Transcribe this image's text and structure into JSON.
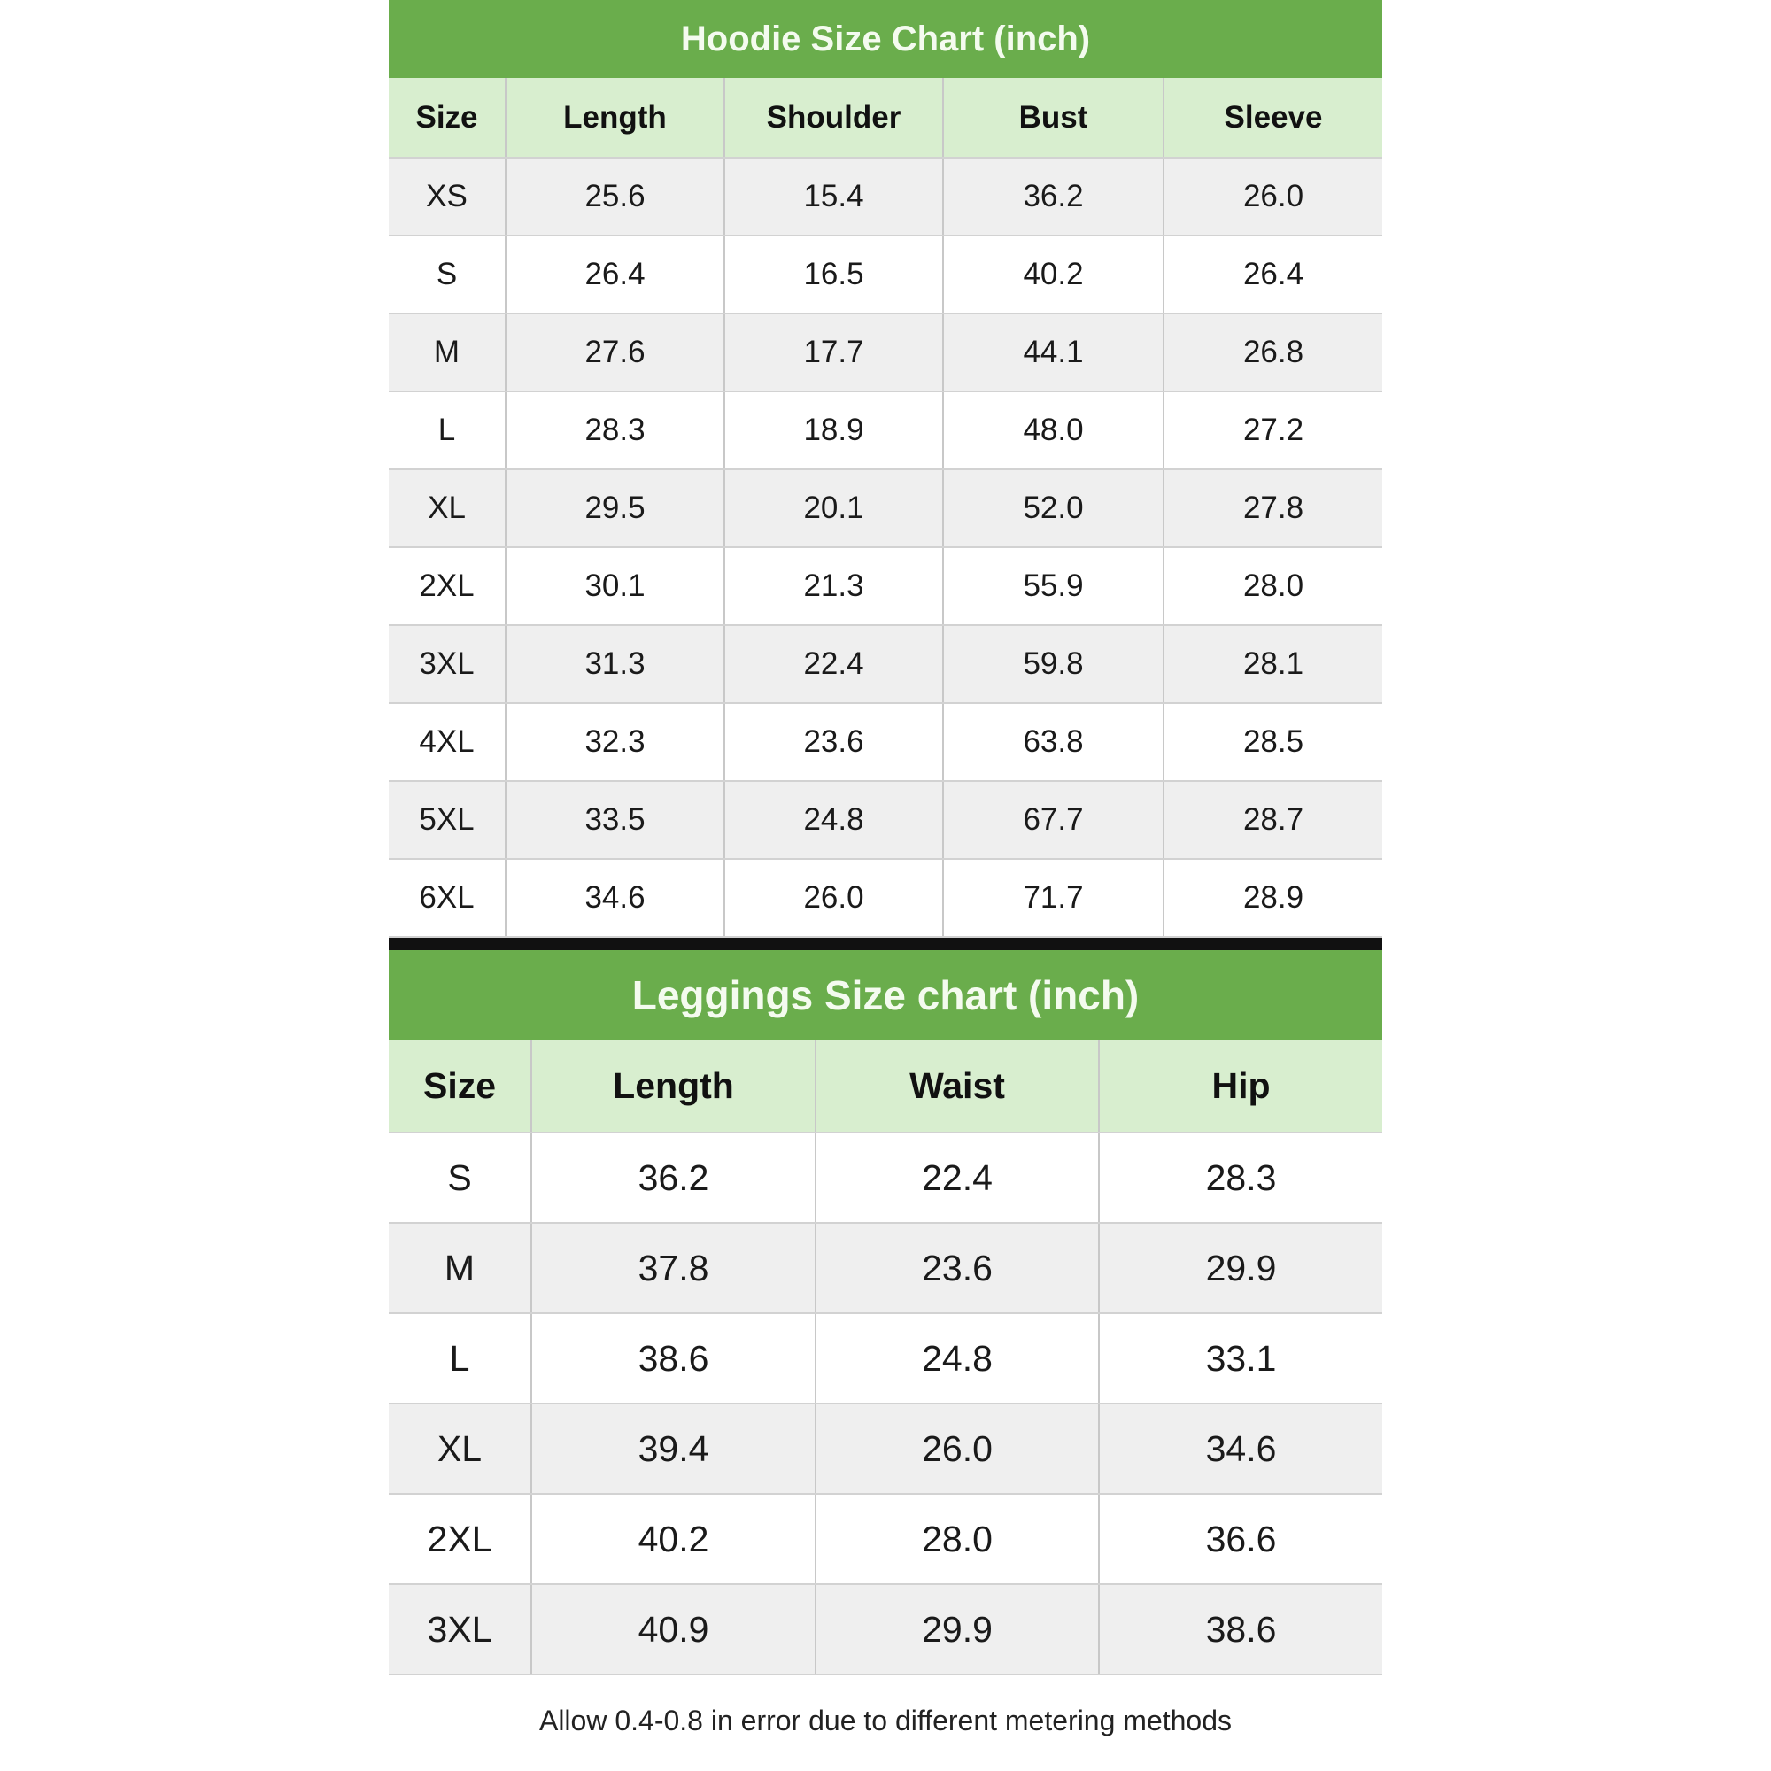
{
  "hoodie": {
    "title": "Hoodie Size Chart (inch)",
    "headers": [
      "Size",
      "Length",
      "Shoulder",
      "Bust",
      "Sleeve"
    ],
    "rows": [
      [
        "XS",
        "25.6",
        "15.4",
        "36.2",
        "26.0"
      ],
      [
        "S",
        "26.4",
        "16.5",
        "40.2",
        "26.4"
      ],
      [
        "M",
        "27.6",
        "17.7",
        "44.1",
        "26.8"
      ],
      [
        "L",
        "28.3",
        "18.9",
        "48.0",
        "27.2"
      ],
      [
        "XL",
        "29.5",
        "20.1",
        "52.0",
        "27.8"
      ],
      [
        "2XL",
        "30.1",
        "21.3",
        "55.9",
        "28.0"
      ],
      [
        "3XL",
        "31.3",
        "22.4",
        "59.8",
        "28.1"
      ],
      [
        "4XL",
        "32.3",
        "23.6",
        "63.8",
        "28.5"
      ],
      [
        "5XL",
        "33.5",
        "24.8",
        "67.7",
        "28.7"
      ],
      [
        "6XL",
        "34.6",
        "26.0",
        "71.7",
        "28.9"
      ]
    ]
  },
  "leggings": {
    "title": "Leggings Size chart (inch)",
    "headers": [
      "Size",
      "Length",
      "Waist",
      "Hip"
    ],
    "rows": [
      [
        "S",
        "36.2",
        "22.4",
        "28.3"
      ],
      [
        "M",
        "37.8",
        "23.6",
        "29.9"
      ],
      [
        "L",
        "38.6",
        "24.8",
        "33.1"
      ],
      [
        "XL",
        "39.4",
        "26.0",
        "34.6"
      ],
      [
        "2XL",
        "40.2",
        "28.0",
        "36.6"
      ],
      [
        "3XL",
        "40.9",
        "29.9",
        "38.6"
      ]
    ]
  },
  "note": "Allow 0.4-0.8 in error due to different metering methods",
  "colors": {
    "title_bg": "#6aad4c",
    "header_bg": "#d8eecf",
    "alt_row": "#efefef"
  }
}
